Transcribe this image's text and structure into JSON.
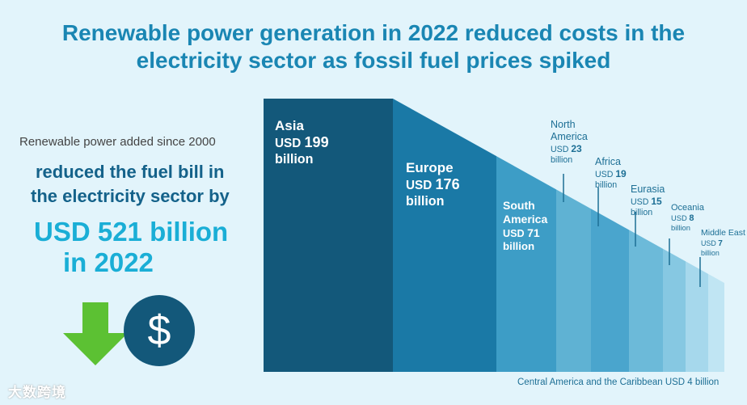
{
  "title_line1": "Renewable power generation in 2022 reduced costs in the",
  "title_line2": "electricity sector as fossil fuel prices spiked",
  "left_panel": {
    "line1": "Renewable power added since 2000",
    "line2": "reduced the fuel bill in",
    "line3": "the electricity sector by",
    "highlight_line1": "USD 521 billion",
    "highlight_line2": "in 2022",
    "arrow_icon": "down-arrow-icon",
    "dollar_icon": "dollar-sign-icon"
  },
  "watermark": "大数跨境",
  "colors": {
    "title": "#1a86b3",
    "highlight": "#1aaed6",
    "arrow": "#5cc133",
    "dollar_circle": "#13587a"
  },
  "chart_data": {
    "type": "bar",
    "unit": "USD billion",
    "categories": [
      "Asia",
      "Europe",
      "South America",
      "North America",
      "Africa",
      "Eurasia",
      "Oceania",
      "Middle East",
      "Central America and the Caribbean"
    ],
    "values": [
      199,
      176,
      71,
      23,
      19,
      15,
      8,
      7,
      4
    ],
    "value_labels": [
      {
        "prefix": "USD",
        "number": "199",
        "suffix": "billion"
      },
      {
        "prefix": "USD",
        "number": "176",
        "suffix": "billion"
      },
      {
        "prefix": "USD",
        "number": "71",
        "suffix": "billion"
      },
      {
        "prefix": "USD",
        "number": "23",
        "suffix": "billion"
      },
      {
        "prefix": "USD",
        "number": "19",
        "suffix": "billion"
      },
      {
        "prefix": "USD",
        "number": "15",
        "suffix": "billion"
      },
      {
        "prefix": "USD",
        "number": "8",
        "suffix": "billion"
      },
      {
        "prefix": "USD",
        "number": "7",
        "suffix": "billion"
      },
      {
        "prefix": "USD",
        "number": "4",
        "suffix": "billion"
      }
    ],
    "central_america_label": "Central America and the Caribbean USD 4 billion",
    "colors": [
      "#13587a",
      "#1a79a6",
      "#3d9dc6",
      "#5fb2d3",
      "#4aa5cd",
      "#6cbad9",
      "#86c8e2",
      "#a6d8ec",
      "#c0e5f3"
    ]
  }
}
